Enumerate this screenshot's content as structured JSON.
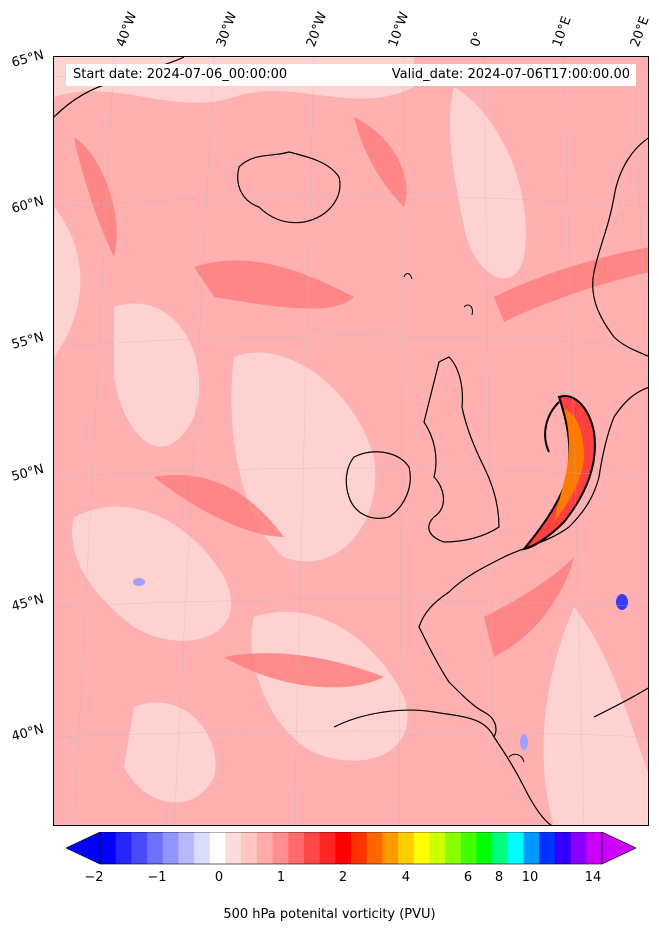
{
  "header": {
    "start_date": "Start date: 2024-07-06_00:00:00",
    "valid_date": "Valid_date: 2024-07-06T17:00:00.00"
  },
  "axes": {
    "lon_labels": [
      "40°W",
      "30°W",
      "20°W",
      "10°W",
      "0°",
      "10°E",
      "20°E"
    ],
    "lat_labels": [
      "65°N",
      "60°N",
      "55°N",
      "50°N",
      "45°N",
      "40°N"
    ]
  },
  "colorbar": {
    "label": "500 hPa potenital vorticity (PVU)",
    "tick_labels": [
      "−2",
      "−1",
      "0",
      "1",
      "2",
      "4",
      "6",
      "8",
      "10",
      "14"
    ],
    "colors": [
      "#0000ff",
      "#2525ff",
      "#4a4aff",
      "#7070ff",
      "#9494ff",
      "#b8b8ff",
      "#dcdcff",
      "#ffffff",
      "#ffdcdc",
      "#ffc4c4",
      "#ffaaaa",
      "#ff8f8f",
      "#ff6b6b",
      "#ff4848",
      "#ff2424",
      "#ff0000",
      "#ff3300",
      "#ff6600",
      "#ff9900",
      "#ffcc00",
      "#ffff00",
      "#ccff00",
      "#88ff00",
      "#44ff00",
      "#00ff00",
      "#00ff80",
      "#00ffff",
      "#0099ff",
      "#0033ff",
      "#3300ff",
      "#8800ff",
      "#cc00ff"
    ],
    "under_color": "#0000ff",
    "over_color": "#cc00ff"
  },
  "map": {
    "background_color": "#ffb3b3",
    "coastline_color": "#000000",
    "feature": "elongated high-PV streamer over the North Sea / Low Countries"
  }
}
